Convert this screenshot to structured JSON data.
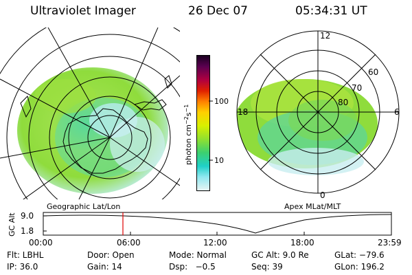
{
  "header": {
    "title": "Ultraviolet Imager",
    "date": "26 Dec 07",
    "time": "05:34:31 UT"
  },
  "left_panel": {
    "caption": "Geographic Lat/Lon"
  },
  "right_panel": {
    "caption": "Apex MLat/MLT",
    "mlt_labels": {
      "top": "12",
      "right": "6",
      "bottom": "0",
      "left": "18"
    },
    "lat_labels": [
      "60",
      "70",
      "80"
    ]
  },
  "colorbar": {
    "label": "photon cm",
    "label_sup1": "−2",
    "label_mid": "s",
    "label_sup2": "−1",
    "ticks": [
      "100",
      "10"
    ]
  },
  "altitude_plot": {
    "ylabel": "GC Alt",
    "yticks": [
      "9.0",
      "1.8"
    ],
    "xticks": [
      "00:00",
      "06:00",
      "12:00",
      "18:00",
      "23:59"
    ],
    "marker_color": "#e00000"
  },
  "info": {
    "flt": "Flt: LBHL",
    "ip": "IP: 36.0",
    "door": "Door: Open",
    "gain": "Gain: 14",
    "mode": "Mode: Normal",
    "dsp": "Dsp:   −0.5",
    "gcalt": "GC Alt: 9.0 Re",
    "seq": "Seq: 39",
    "glat": "GLat: −79.6",
    "glon": "GLon: 196.2"
  }
}
